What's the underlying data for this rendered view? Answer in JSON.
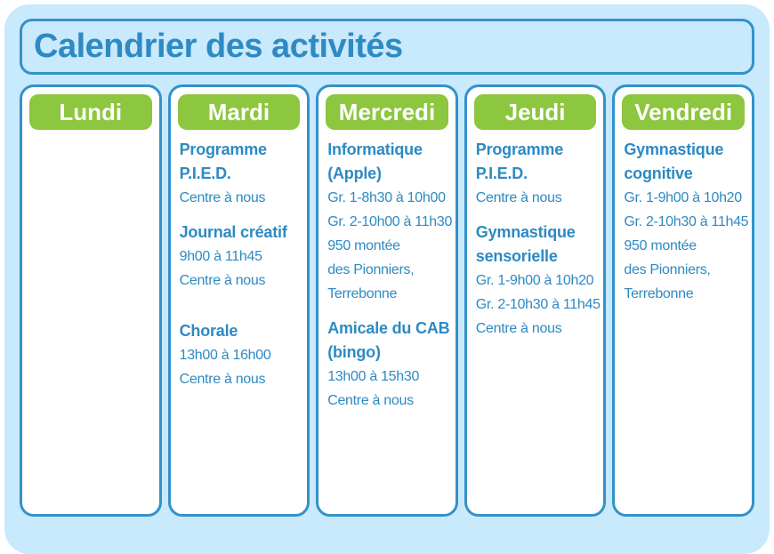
{
  "title": "Calendrier des activités",
  "colors": {
    "accent_blue": "#3392ca",
    "text_blue": "#2d8ac3",
    "green": "#8dc63f",
    "card_bg": "#c9e9fc",
    "column_bg": "#ffffff",
    "header_text": "#ffffff"
  },
  "days": [
    {
      "name": "Lundi",
      "activities": []
    },
    {
      "name": "Mardi",
      "activities": [
        {
          "title_lines": [
            "Programme",
            "P.I.E.D."
          ],
          "details": [
            "Centre à nous"
          ],
          "gap_before": "normal"
        },
        {
          "title_lines": [
            "Journal créatif"
          ],
          "details": [
            "9h00 à 11h45",
            "Centre à nous"
          ],
          "gap_before": "normal"
        },
        {
          "title_lines": [
            "Chorale"
          ],
          "details": [
            "13h00 à 16h00",
            "Centre à nous"
          ],
          "gap_before": "large"
        }
      ]
    },
    {
      "name": "Mercredi",
      "activities": [
        {
          "title_lines": [
            "Informatique",
            "(Apple)"
          ],
          "details": [
            "Gr. 1-8h30 à 10h00",
            "Gr. 2-10h00 à 11h30",
            "950 montée",
            "des Pionniers,",
            "Terrebonne"
          ],
          "gap_before": "normal"
        },
        {
          "title_lines": [
            "Amicale du CAB",
            "(bingo)"
          ],
          "details": [
            "13h00 à 15h30",
            "Centre à nous"
          ],
          "gap_before": "normal"
        }
      ]
    },
    {
      "name": "Jeudi",
      "activities": [
        {
          "title_lines": [
            "Programme",
            "P.I.E.D."
          ],
          "details": [
            "Centre à nous"
          ],
          "gap_before": "normal"
        },
        {
          "title_lines": [
            "Gymnastique",
            "sensorielle"
          ],
          "details": [
            "Gr. 1-9h00 à 10h20",
            "Gr. 2-10h30 à 11h45",
            "Centre à nous"
          ],
          "gap_before": "normal"
        }
      ]
    },
    {
      "name": "Vendredi",
      "activities": [
        {
          "title_lines": [
            "Gymnastique",
            "cognitive"
          ],
          "details": [
            "Gr. 1-9h00 à 10h20",
            "Gr. 2-10h30 à 11h45",
            "950 montée",
            "des Pionniers,",
            "Terrebonne"
          ],
          "gap_before": "normal"
        }
      ]
    }
  ]
}
